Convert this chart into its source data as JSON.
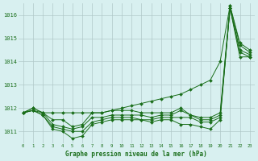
{
  "x": [
    0,
    1,
    2,
    3,
    4,
    5,
    6,
    7,
    8,
    9,
    10,
    11,
    12,
    13,
    14,
    15,
    16,
    17,
    18,
    19,
    20,
    21,
    22,
    23
  ],
  "series": [
    [
      1011.8,
      1011.9,
      1011.7,
      1011.1,
      1011.0,
      1010.7,
      1010.8,
      1011.3,
      1011.4,
      1011.5,
      1011.5,
      1011.5,
      1011.5,
      1011.4,
      1011.5,
      1011.5,
      1011.3,
      1011.3,
      1011.2,
      1011.1,
      1011.5,
      1016.3,
      1014.2,
      1014.2
    ],
    [
      1011.8,
      1011.9,
      1011.7,
      1011.2,
      1011.1,
      1011.0,
      1011.0,
      1011.4,
      1011.5,
      1011.6,
      1011.6,
      1011.6,
      1011.5,
      1011.5,
      1011.6,
      1011.6,
      1011.6,
      1011.6,
      1011.4,
      1011.4,
      1011.6,
      1016.3,
      1014.4,
      1014.2
    ],
    [
      1011.8,
      1011.9,
      1011.8,
      1011.3,
      1011.2,
      1011.1,
      1011.2,
      1011.6,
      1011.6,
      1011.7,
      1011.7,
      1011.7,
      1011.7,
      1011.6,
      1011.7,
      1011.7,
      1011.9,
      1011.7,
      1011.5,
      1011.5,
      1011.7,
      1016.3,
      1014.5,
      1014.3
    ],
    [
      1011.8,
      1012.0,
      1011.8,
      1011.5,
      1011.5,
      1011.2,
      1011.3,
      1011.8,
      1011.8,
      1011.9,
      1011.9,
      1011.9,
      1011.8,
      1011.8,
      1011.8,
      1011.8,
      1012.0,
      1011.7,
      1011.6,
      1011.6,
      1011.8,
      1016.4,
      1014.7,
      1014.4
    ],
    [
      1011.8,
      1012.0,
      1011.8,
      1011.8,
      1011.8,
      1011.8,
      1011.8,
      1011.8,
      1011.8,
      1011.9,
      1012.0,
      1012.1,
      1012.2,
      1012.3,
      1012.4,
      1012.5,
      1012.6,
      1012.8,
      1013.0,
      1013.2,
      1014.0,
      1016.4,
      1014.8,
      1014.5
    ]
  ],
  "line_color": "#1a6e1a",
  "marker": "D",
  "marker_size": 2,
  "bg_color": "#d8f0f0",
  "grid_color": "#b0c8c8",
  "text_color": "#1a6e1a",
  "xlabel": "Graphe pression niveau de la mer (hPa)",
  "ylim": [
    1010.5,
    1016.5
  ],
  "xlim": [
    -0.5,
    23.5
  ],
  "yticks": [
    1011,
    1012,
    1013,
    1014,
    1015,
    1016
  ],
  "xticks": [
    0,
    1,
    2,
    3,
    4,
    5,
    6,
    7,
    8,
    9,
    10,
    11,
    12,
    13,
    14,
    15,
    16,
    17,
    18,
    19,
    20,
    21,
    22,
    23
  ]
}
